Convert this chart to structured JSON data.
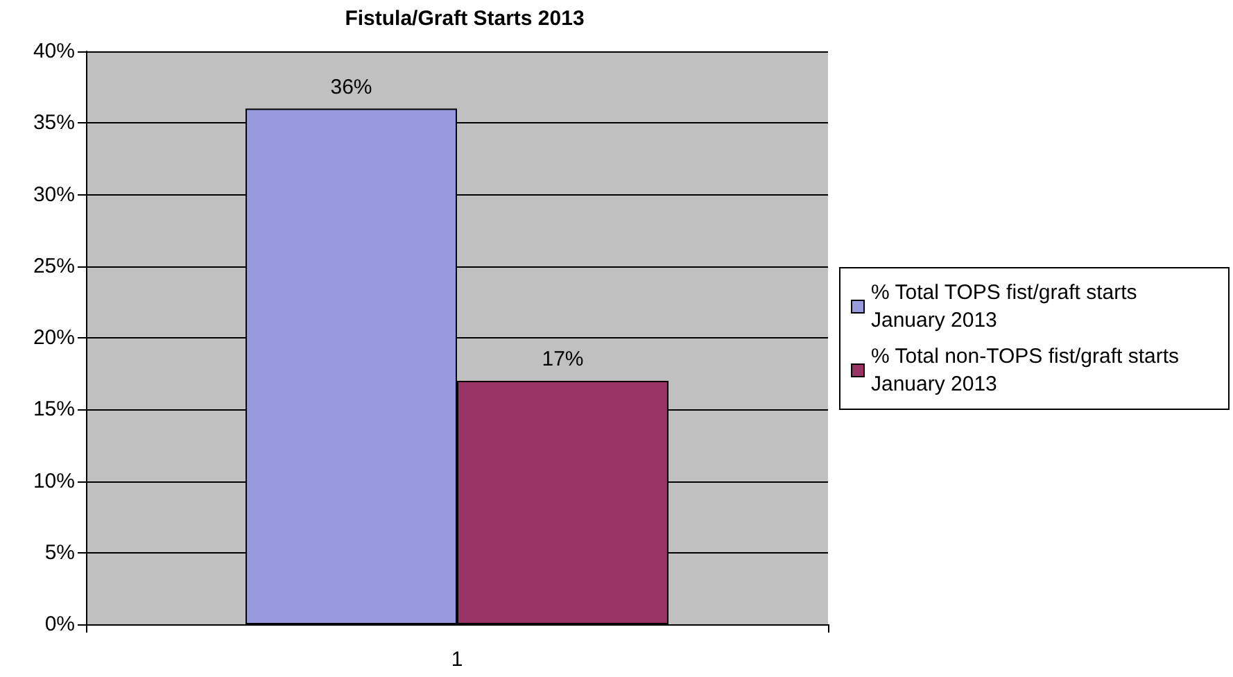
{
  "chart_data": {
    "type": "bar",
    "title": "Fistula/Graft Starts 2013",
    "categories": [
      "1"
    ],
    "series": [
      {
        "name": "% Total TOPS fist/graft starts January 2013",
        "color": "#9999dd",
        "values": [
          36
        ],
        "value_labels": [
          "36%"
        ]
      },
      {
        "name": "% Total non-TOPS fist/graft starts January 2013",
        "color": "#993366",
        "values": [
          17
        ],
        "value_labels": [
          "17%"
        ]
      }
    ],
    "ylim": [
      0,
      40
    ],
    "yticks": [
      {
        "value": 0,
        "label": "0%"
      },
      {
        "value": 5,
        "label": "5%"
      },
      {
        "value": 10,
        "label": "10%"
      },
      {
        "value": 15,
        "label": "15%"
      },
      {
        "value": 20,
        "label": "20%"
      },
      {
        "value": 25,
        "label": "25%"
      },
      {
        "value": 30,
        "label": "30%"
      },
      {
        "value": 35,
        "label": "35%"
      },
      {
        "value": 40,
        "label": "40%"
      }
    ],
    "grid": "y",
    "legend": "right"
  }
}
